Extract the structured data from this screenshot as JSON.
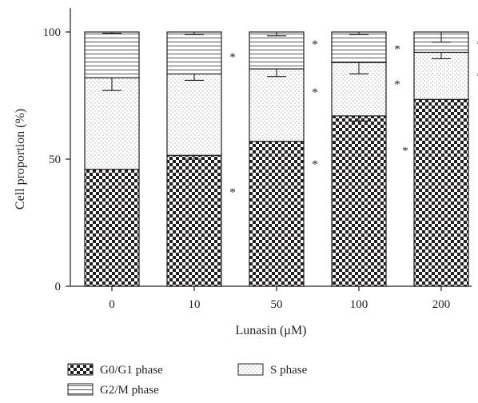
{
  "chart_data": {
    "type": "bar",
    "stacked": true,
    "percent_stacked": true,
    "xlabel": "Lunasin (μM)",
    "ylabel": "Cell proportion (%)",
    "ylim": [
      0,
      100
    ],
    "yticks": [
      0,
      50,
      100
    ],
    "grid": false,
    "legend_position": "bottom",
    "categories": [
      "0",
      "10",
      "50",
      "100",
      "200"
    ],
    "series": [
      {
        "name": "G0/G1 phase",
        "pattern": "checkerboard",
        "values": [
          46,
          51.5,
          57,
          67,
          73.5
        ],
        "errors": [
          0,
          1.5,
          0,
          2,
          0
        ]
      },
      {
        "name": "S phase",
        "pattern": "dots",
        "values": [
          36,
          32,
          28.5,
          21,
          18.5
        ],
        "errors": [
          5,
          2.5,
          3,
          4.5,
          2.5
        ]
      },
      {
        "name": "G2/M phase",
        "pattern": "horizontal-lines",
        "values": [
          18,
          16.5,
          14.5,
          12,
          8
        ],
        "errors": [
          0.5,
          1,
          1.5,
          1,
          4
        ]
      }
    ],
    "significance": [
      {
        "category": "10",
        "series": [
          "G0/G1 phase",
          "S phase",
          "G2/M phase"
        ],
        "marker": "*"
      },
      {
        "category": "50",
        "series": [
          "G0/G1 phase",
          "S phase",
          "G2/M phase"
        ],
        "marker": "*"
      },
      {
        "category": "100",
        "series": [
          "G0/G1 phase",
          "S phase",
          "G2/M phase"
        ],
        "marker": "*"
      },
      {
        "category": "200",
        "series": [
          "G0/G1 phase",
          "S phase",
          "G2/M phase"
        ],
        "marker": "*"
      }
    ]
  }
}
